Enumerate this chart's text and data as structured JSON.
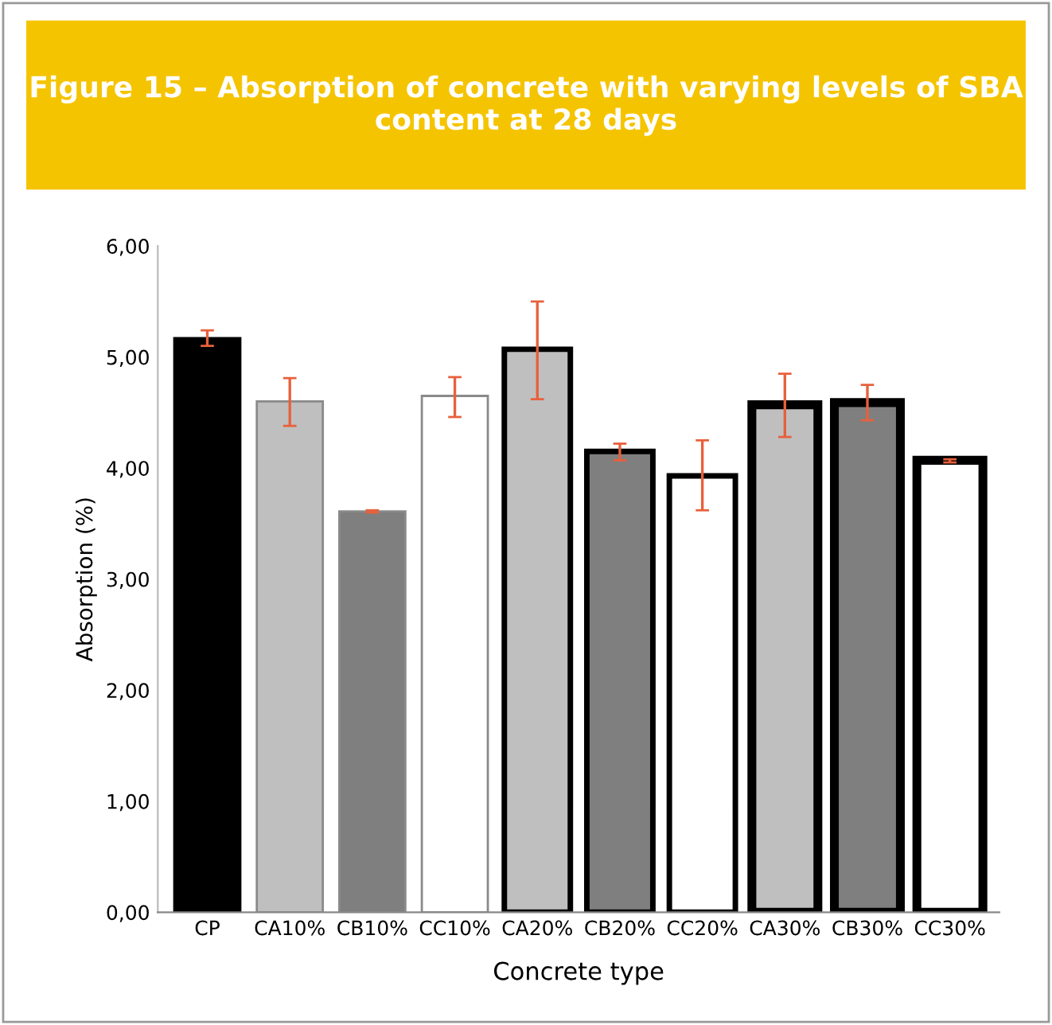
{
  "chart_data": {
    "type": "bar",
    "title": "Figure 15 – Absorption of concrete with varying levels of SBA content at 28 days",
    "xlabel": "Concrete type",
    "ylabel": "Absorption (%)",
    "categories": [
      "CP",
      "CA10%",
      "CB10%",
      "CC10%",
      "CA20%",
      "CB20%",
      "CC20%",
      "CA30%",
      "CB30%",
      "CC30%"
    ],
    "values": [
      5.17,
      4.6,
      3.61,
      4.65,
      5.07,
      4.15,
      3.93,
      4.57,
      4.59,
      4.07
    ],
    "colors": [
      "#000000",
      "#bfbfbf",
      "#7f7f7f",
      "#ffffff",
      "#bfbfbf",
      "#7f7f7f",
      "#ffffff",
      "#bfbfbf",
      "#7f7f7f",
      "#ffffff"
    ],
    "errors": [
      [
        5.1,
        5.24
      ],
      [
        4.38,
        4.81
      ],
      [
        3.6,
        3.62
      ],
      [
        4.46,
        4.82
      ],
      [
        4.62,
        5.5
      ],
      [
        4.07,
        4.22
      ],
      [
        3.62,
        4.25
      ],
      [
        4.28,
        4.85
      ],
      [
        4.43,
        4.75
      ],
      [
        4.05,
        4.08
      ]
    ],
    "ylim": [
      0,
      6
    ],
    "yticks": [
      {
        "value": 0,
        "label": "0,00"
      },
      {
        "value": 1,
        "label": "1,00"
      },
      {
        "value": 2,
        "label": "2,00"
      },
      {
        "value": 3,
        "label": "3,00"
      },
      {
        "value": 4,
        "label": "4,00"
      },
      {
        "value": 5,
        "label": "5,00"
      },
      {
        "value": 6,
        "label": "6,00"
      }
    ],
    "grid": false,
    "legend": false
  }
}
